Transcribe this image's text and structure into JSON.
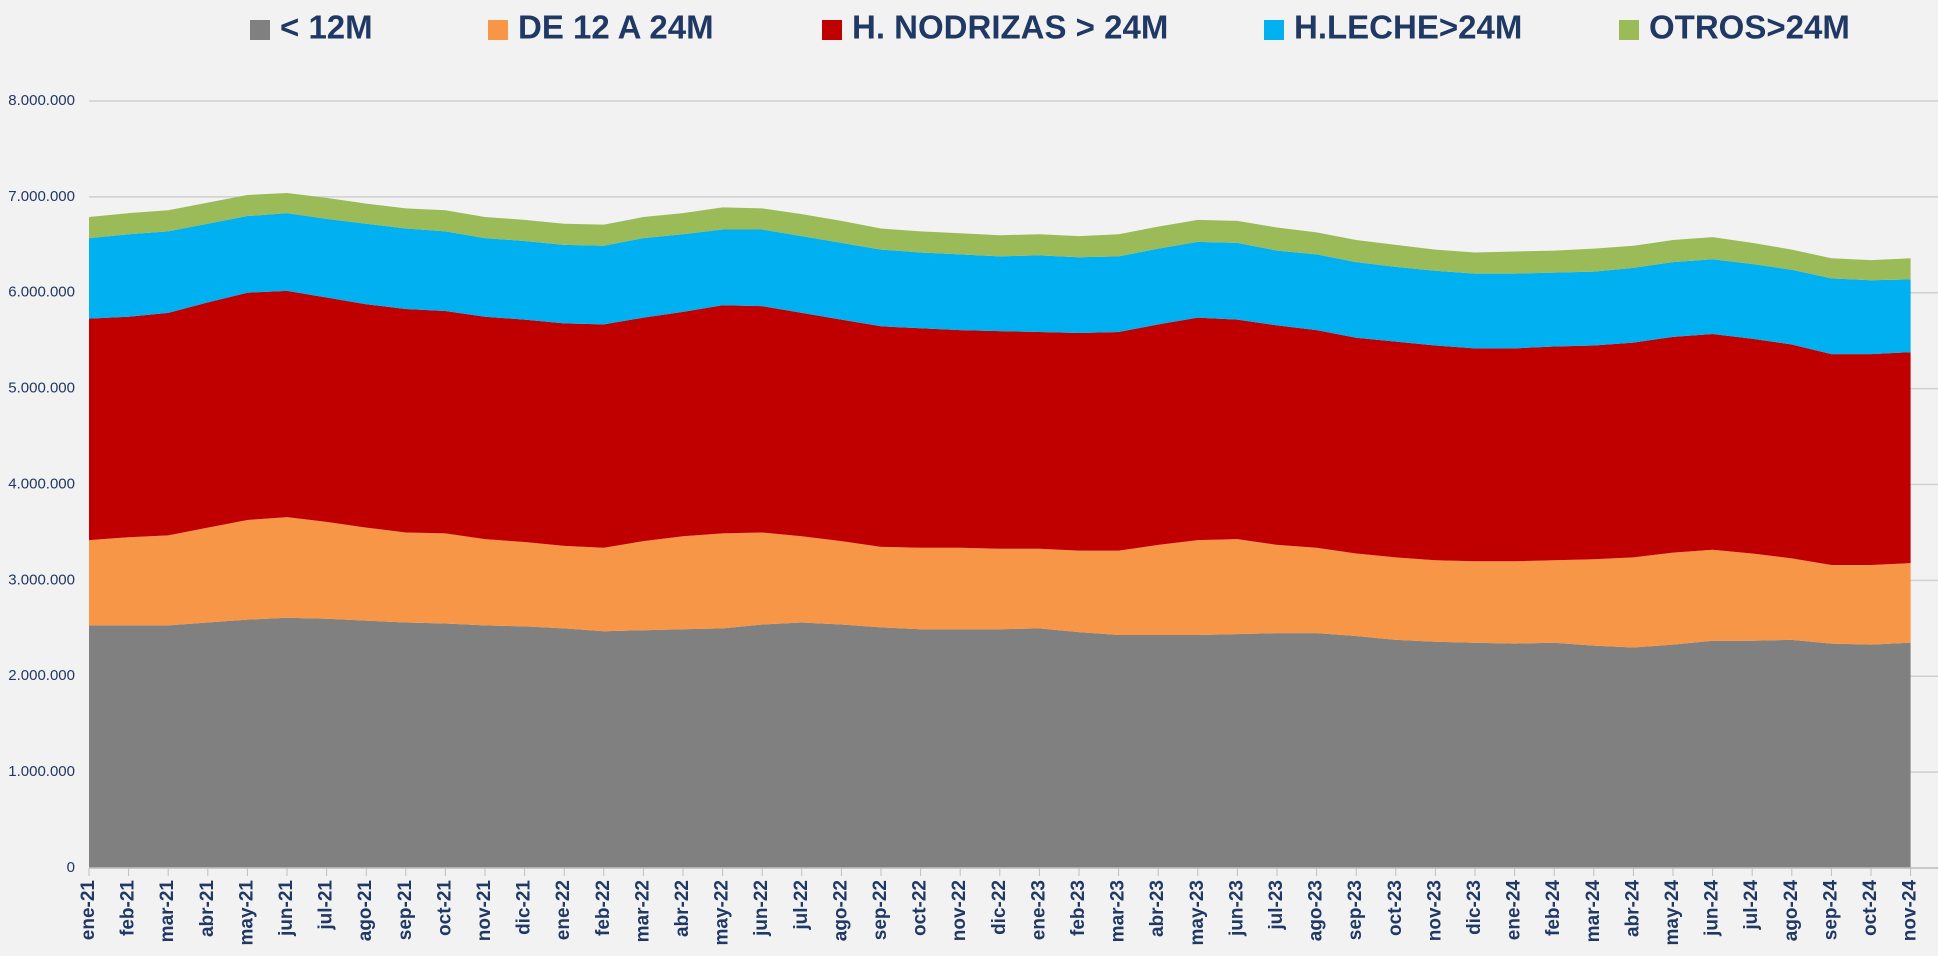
{
  "chart_data": {
    "type": "stacked-area",
    "categories": [
      "ene-21",
      "feb-21",
      "mar-21",
      "abr-21",
      "may-21",
      "jun-21",
      "jul-21",
      "ago-21",
      "sep-21",
      "oct-21",
      "nov-21",
      "dic-21",
      "ene-22",
      "feb-22",
      "mar-22",
      "abr-22",
      "may-22",
      "jun-22",
      "jul-22",
      "ago-22",
      "sep-22",
      "oct-22",
      "nov-22",
      "dic-22",
      "ene-23",
      "feb-23",
      "mar-23",
      "abr-23",
      "may-23",
      "jun-23",
      "jul-23",
      "ago-23",
      "sep-23",
      "oct-23",
      "nov-23",
      "dic-23",
      "ene-24",
      "feb-24",
      "mar-24",
      "abr-24",
      "may-24",
      "jun-24",
      "jul-24",
      "ago-24",
      "sep-24",
      "oct-24",
      "nov-24"
    ],
    "series": [
      {
        "name": "< 12M",
        "color": "#808080",
        "values": [
          2530000,
          2530000,
          2530000,
          2560000,
          2590000,
          2610000,
          2600000,
          2580000,
          2560000,
          2550000,
          2530000,
          2520000,
          2500000,
          2470000,
          2480000,
          2490000,
          2500000,
          2540000,
          2560000,
          2540000,
          2510000,
          2490000,
          2490000,
          2490000,
          2500000,
          2460000,
          2430000,
          2430000,
          2430000,
          2440000,
          2450000,
          2450000,
          2420000,
          2380000,
          2360000,
          2350000,
          2340000,
          2350000,
          2320000,
          2300000,
          2330000,
          2370000,
          2370000,
          2380000,
          2340000,
          2330000,
          2350000
        ]
      },
      {
        "name": "DE 12 A 24M",
        "color": "#f79646",
        "values": [
          890000,
          920000,
          940000,
          990000,
          1040000,
          1050000,
          1010000,
          970000,
          940000,
          940000,
          900000,
          880000,
          860000,
          870000,
          930000,
          970000,
          990000,
          960000,
          900000,
          870000,
          840000,
          850000,
          850000,
          840000,
          830000,
          850000,
          880000,
          940000,
          990000,
          990000,
          920000,
          890000,
          860000,
          860000,
          850000,
          850000,
          860000,
          860000,
          900000,
          940000,
          960000,
          950000,
          910000,
          850000,
          820000,
          830000,
          830000
        ]
      },
      {
        "name": "H. NODRIZAS > 24M",
        "color": "#c00000",
        "values": [
          2310000,
          2300000,
          2320000,
          2350000,
          2370000,
          2360000,
          2340000,
          2330000,
          2330000,
          2320000,
          2320000,
          2320000,
          2320000,
          2330000,
          2330000,
          2340000,
          2380000,
          2360000,
          2330000,
          2310000,
          2300000,
          2290000,
          2270000,
          2270000,
          2260000,
          2270000,
          2280000,
          2300000,
          2320000,
          2290000,
          2290000,
          2270000,
          2250000,
          2250000,
          2240000,
          2220000,
          2220000,
          2230000,
          2230000,
          2240000,
          2250000,
          2250000,
          2240000,
          2230000,
          2200000,
          2200000,
          2200000
        ]
      },
      {
        "name": "H.LECHE>24M",
        "color": "#00b0f0",
        "values": [
          840000,
          860000,
          850000,
          820000,
          800000,
          810000,
          820000,
          840000,
          840000,
          830000,
          820000,
          820000,
          820000,
          820000,
          830000,
          810000,
          790000,
          800000,
          800000,
          800000,
          800000,
          790000,
          790000,
          780000,
          800000,
          790000,
          790000,
          790000,
          790000,
          800000,
          780000,
          790000,
          790000,
          780000,
          780000,
          780000,
          780000,
          770000,
          770000,
          780000,
          780000,
          780000,
          780000,
          780000,
          790000,
          770000,
          760000
        ]
      },
      {
        "name": "OTROS>24M",
        "color": "#9bbb59",
        "values": [
          220000,
          220000,
          220000,
          220000,
          220000,
          210000,
          220000,
          210000,
          210000,
          220000,
          220000,
          220000,
          220000,
          220000,
          220000,
          220000,
          230000,
          220000,
          230000,
          230000,
          220000,
          220000,
          220000,
          220000,
          220000,
          220000,
          230000,
          230000,
          230000,
          230000,
          240000,
          230000,
          230000,
          230000,
          220000,
          220000,
          230000,
          230000,
          240000,
          230000,
          230000,
          230000,
          220000,
          210000,
          210000,
          210000,
          220000
        ]
      }
    ],
    "ylim": [
      0,
      8000000
    ],
    "yticks": [
      0,
      {
        "value": 1000000,
        "label": "1.000.000"
      },
      {
        "value": 2000000,
        "label": "2.000.000"
      },
      {
        "value": 3000000,
        "label": "3.000.000"
      },
      {
        "value": 4000000,
        "label": "4.000.000"
      },
      {
        "value": 5000000,
        "label": "5.000.000"
      },
      {
        "value": 6000000,
        "label": "6.000.000"
      },
      {
        "value": 7000000,
        "label": "7.000.000"
      },
      {
        "value": {
          "value": 8000000,
          "label": "8.000.000"
        },
        "label": "8.000.000"
      }
    ],
    "grid": true,
    "legend": "top"
  }
}
